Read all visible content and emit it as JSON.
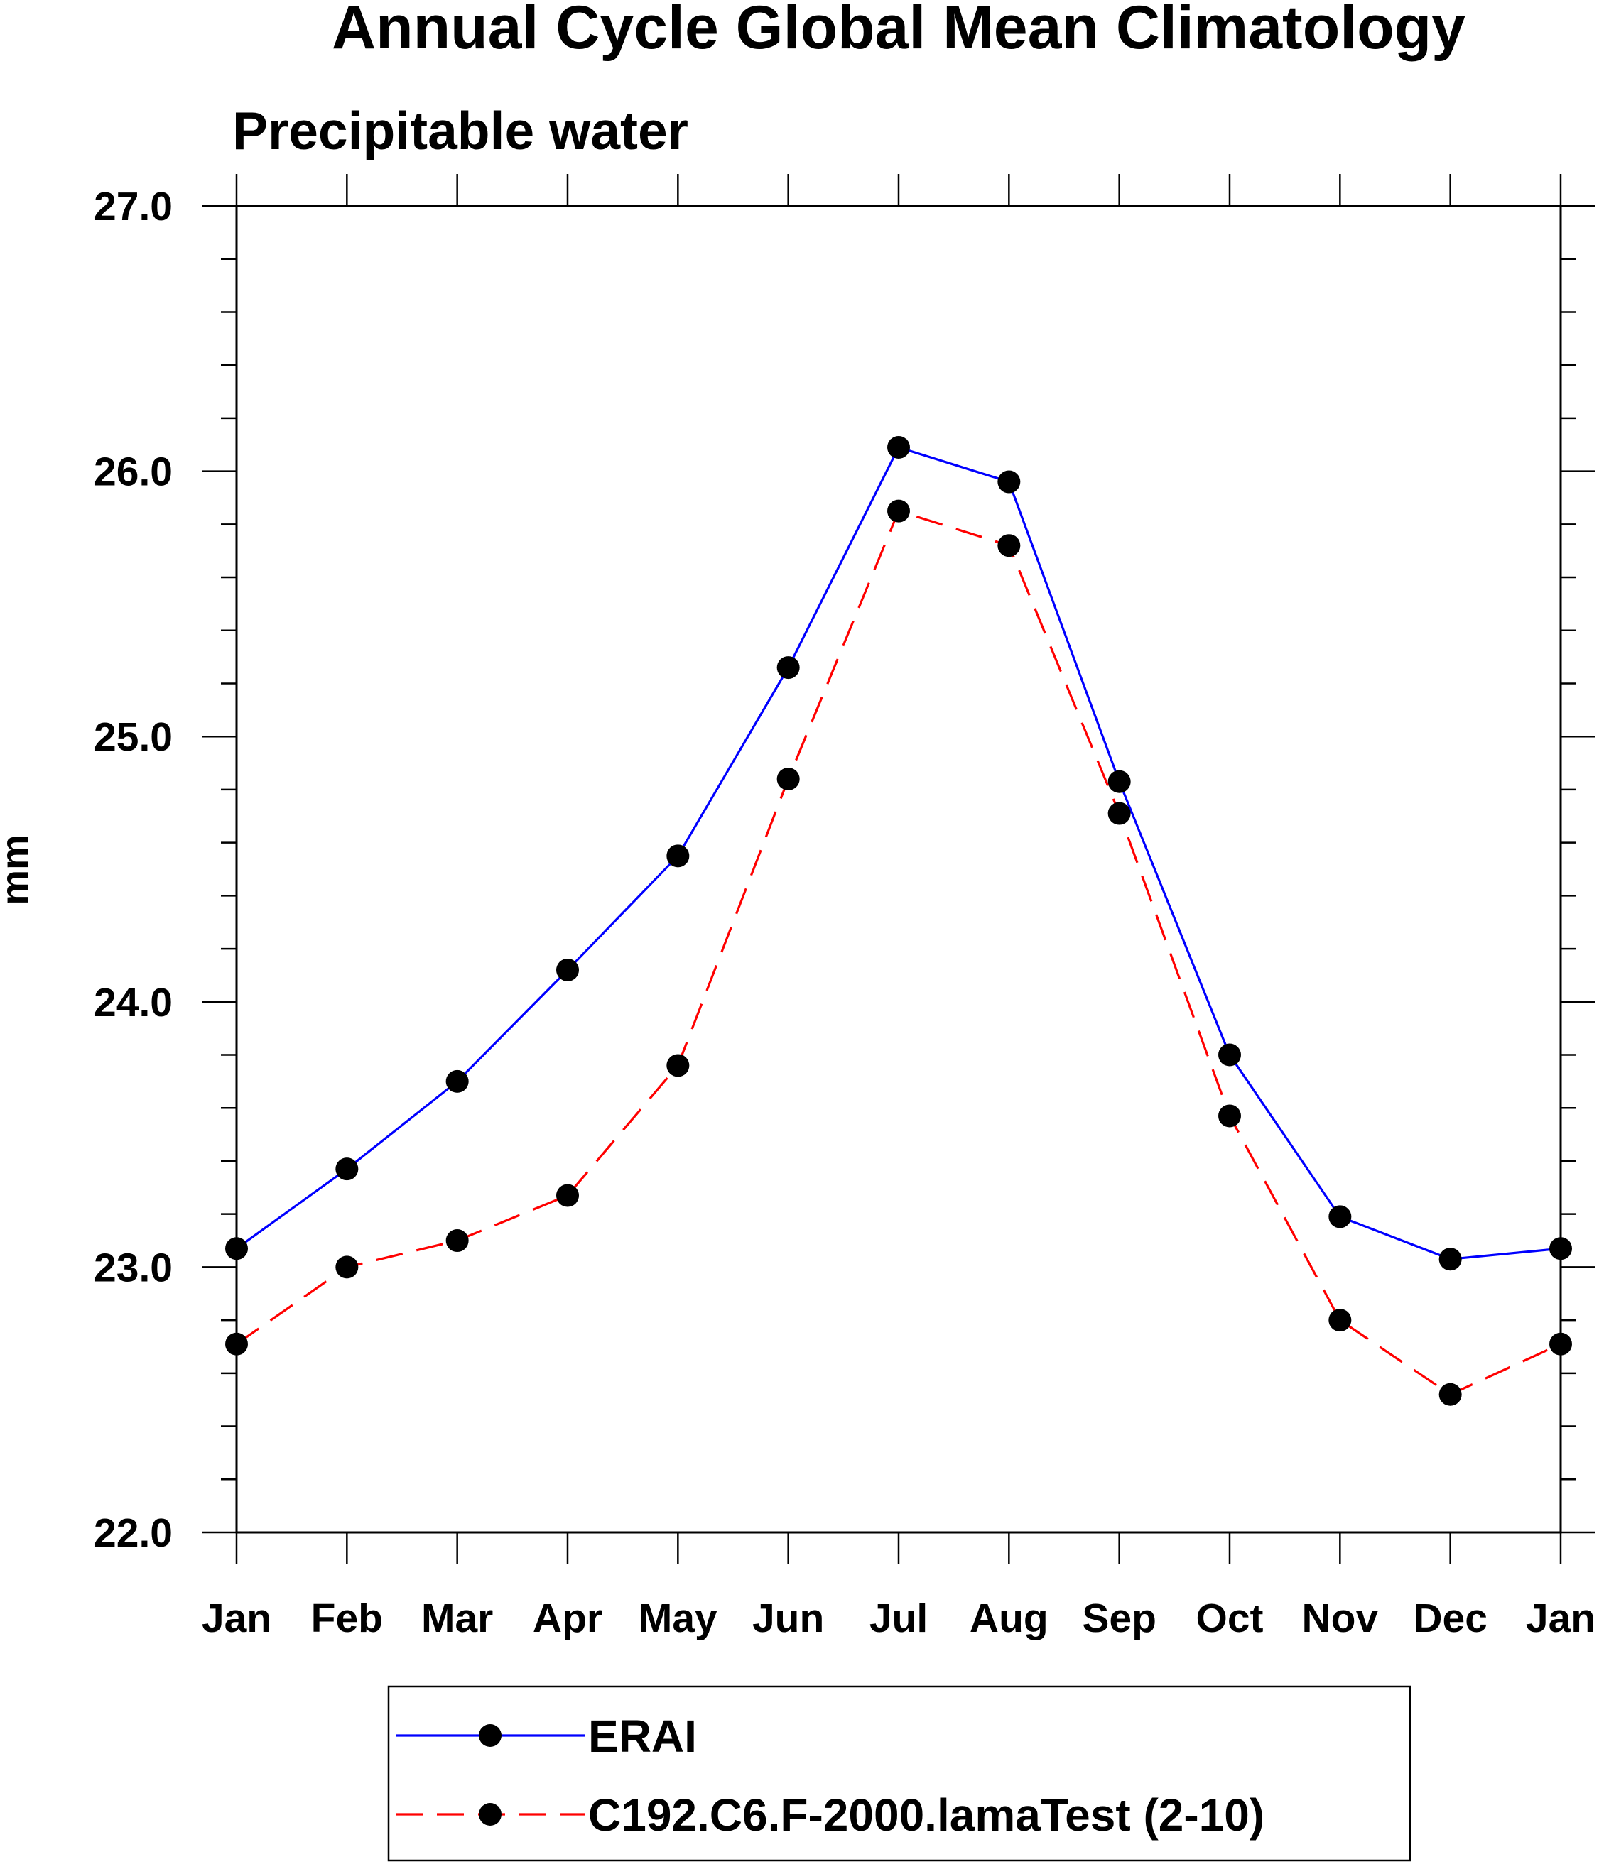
{
  "chart_data": {
    "type": "line",
    "title": "Annual Cycle Global Mean Climatology",
    "subtitle": "Precipitable water",
    "xlabel": "",
    "ylabel": "mm",
    "categories": [
      "Jan",
      "Feb",
      "Mar",
      "Apr",
      "May",
      "Jun",
      "Jul",
      "Aug",
      "Sep",
      "Oct",
      "Nov",
      "Dec",
      "Jan"
    ],
    "ylim": [
      22.0,
      27.0
    ],
    "yticks": [
      "22.0",
      "23.0",
      "24.0",
      "25.0",
      "26.0",
      "27.0"
    ],
    "grid": false,
    "legend_position": "bottom",
    "series": [
      {
        "name": "ERAI",
        "color": "#0000ff",
        "line_style": "solid",
        "marker": "filled-circle",
        "marker_color": "#000000",
        "values": [
          23.07,
          23.37,
          23.7,
          24.12,
          24.55,
          25.26,
          26.09,
          25.96,
          24.83,
          23.8,
          23.19,
          23.03,
          23.07
        ]
      },
      {
        "name": "C192.C6.F-2000.lamaTest (2-10)",
        "color": "#ff0000",
        "line_style": "dashed",
        "marker": "filled-circle",
        "marker_color": "#000000",
        "values": [
          22.71,
          23.0,
          23.1,
          23.27,
          23.76,
          24.84,
          25.85,
          25.72,
          24.71,
          23.57,
          22.8,
          22.52,
          22.71
        ]
      }
    ]
  }
}
